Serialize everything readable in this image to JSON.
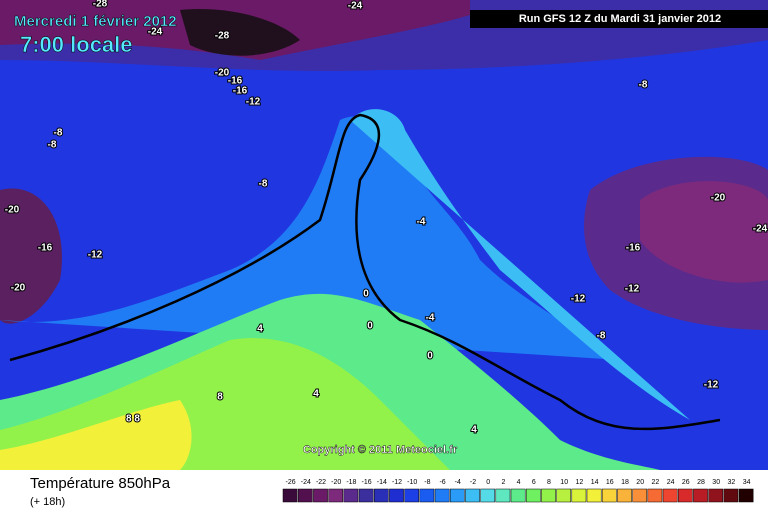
{
  "header": {
    "date": "Mercredi 1 février 2012",
    "time": "7:00 locale",
    "run": "Run GFS 12 Z du Mardi 31 janvier 2012"
  },
  "map": {
    "copyright": "Copyright © 2011 Meteociel.fr",
    "contour_labels": [
      "-28",
      "-24",
      "-24",
      "-28",
      "-20",
      "-16",
      "-16",
      "-12",
      "-8",
      "-8",
      "-8",
      "-8",
      "-20",
      "-20",
      "-4",
      "-24",
      "-16",
      "-16",
      "-12",
      "-20",
      "-12",
      "-12",
      "0",
      "4",
      "-4",
      "0",
      "-8",
      "0",
      "8",
      "4",
      "-12",
      "8 8",
      "4"
    ]
  },
  "footer": {
    "title": "Température 850hPa",
    "lead": "(+ 18h)"
  },
  "legend": {
    "labels": [
      "-26",
      "-24",
      "-22",
      "-20",
      "-18",
      "-16",
      "-14",
      "-12",
      "-10",
      "-8",
      "-6",
      "-4",
      "-2",
      "0",
      "2",
      "4",
      "6",
      "8",
      "10",
      "12",
      "14",
      "16",
      "18",
      "20",
      "22",
      "24",
      "26",
      "28",
      "30",
      "32",
      "34"
    ],
    "colors": [
      "#3a0a3a",
      "#52104f",
      "#6a1a66",
      "#7d2a7c",
      "#5a2b8c",
      "#3b2f9e",
      "#2a2fb8",
      "#1f2ed0",
      "#1c3fe6",
      "#1a5cf0",
      "#1f7cf5",
      "#2a9cf7",
      "#3cbef5",
      "#55dbe8",
      "#5fe8c0",
      "#5cea8a",
      "#6ef060",
      "#93f24a",
      "#b8f040",
      "#d9f23a",
      "#f3f03a",
      "#f8d43a",
      "#f9b23a",
      "#f98f38",
      "#f66a34",
      "#ee4530",
      "#d82a2a",
      "#b81c24",
      "#90121c",
      "#600a10",
      "#200000"
    ]
  }
}
